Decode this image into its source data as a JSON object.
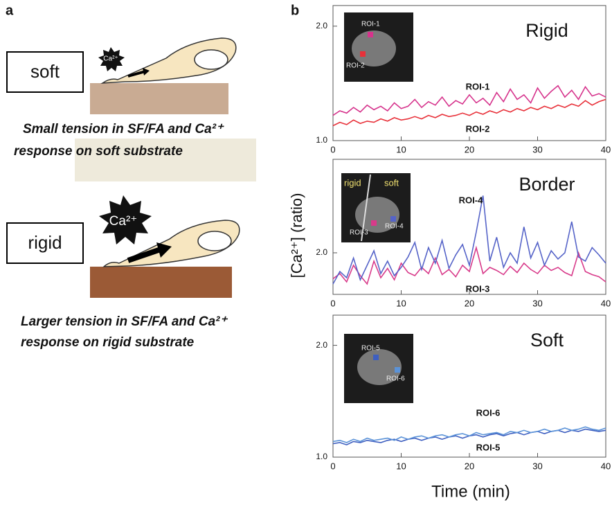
{
  "panel_a": {
    "label": "a",
    "soft": {
      "box": "soft",
      "ion": "Ca²⁺",
      "caption": [
        "Small tension in SF/FA and Ca²⁺",
        "response on soft substrate"
      ]
    },
    "rigid": {
      "box": "rigid",
      "ion": "Ca²⁺",
      "caption": [
        "Larger tension in SF/FA and Ca²⁺",
        "response on rigid substrate"
      ]
    }
  },
  "panel_b_label": "b",
  "chart_data": [
    {
      "type": "line",
      "title": "Rigid",
      "inset_labels": [
        "ROI-1",
        "ROI-2"
      ],
      "x": [
        0,
        1,
        2,
        3,
        4,
        5,
        6,
        7,
        8,
        9,
        10,
        11,
        12,
        13,
        14,
        15,
        16,
        17,
        18,
        19,
        20,
        21,
        22,
        23,
        24,
        25,
        26,
        27,
        28,
        29,
        30,
        31,
        32,
        33,
        34,
        35,
        36,
        37,
        38,
        39,
        40
      ],
      "series": [
        {
          "name": "ROI-1",
          "color": "#d6338c",
          "values": [
            1.22,
            1.26,
            1.24,
            1.29,
            1.25,
            1.31,
            1.27,
            1.3,
            1.26,
            1.33,
            1.28,
            1.3,
            1.36,
            1.29,
            1.34,
            1.31,
            1.38,
            1.3,
            1.35,
            1.32,
            1.4,
            1.33,
            1.37,
            1.31,
            1.42,
            1.34,
            1.45,
            1.36,
            1.4,
            1.33,
            1.46,
            1.37,
            1.43,
            1.48,
            1.38,
            1.44,
            1.36,
            1.47,
            1.39,
            1.41,
            1.38
          ]
        },
        {
          "name": "ROI-2",
          "color": "#e8313a",
          "values": [
            1.13,
            1.16,
            1.14,
            1.18,
            1.15,
            1.17,
            1.16,
            1.19,
            1.17,
            1.2,
            1.18,
            1.19,
            1.21,
            1.19,
            1.22,
            1.2,
            1.23,
            1.21,
            1.22,
            1.24,
            1.22,
            1.25,
            1.23,
            1.26,
            1.24,
            1.27,
            1.25,
            1.28,
            1.26,
            1.29,
            1.27,
            1.3,
            1.28,
            1.31,
            1.29,
            1.32,
            1.3,
            1.35,
            1.31,
            1.34,
            1.36
          ]
        }
      ],
      "xlim": [
        0,
        40
      ],
      "xticks": [
        0,
        10,
        20,
        30,
        40
      ],
      "ylim": [
        1.0,
        2.18
      ],
      "yticks": [
        {
          "value": 1.0,
          "label": "1.0"
        },
        {
          "value": 2.0,
          "label": "2.0"
        }
      ]
    },
    {
      "type": "line",
      "title": "Border",
      "inset_labels": [
        "rigid",
        "soft",
        "ROI-3",
        "ROI-4"
      ],
      "ylabel": "[Ca²⁺] (ratio)",
      "x": [
        0,
        1,
        2,
        3,
        4,
        5,
        6,
        7,
        8,
        9,
        10,
        11,
        12,
        13,
        14,
        15,
        16,
        17,
        18,
        19,
        20,
        21,
        22,
        23,
        24,
        25,
        26,
        27,
        28,
        29,
        30,
        31,
        32,
        33,
        34,
        35,
        36,
        37,
        38,
        39,
        40
      ],
      "series": [
        {
          "name": "ROI-3",
          "color": "#d83a8a",
          "values": [
            1.75,
            1.8,
            1.72,
            1.88,
            1.78,
            1.7,
            1.92,
            1.76,
            1.85,
            1.74,
            1.9,
            1.81,
            1.78,
            1.86,
            1.8,
            1.95,
            1.79,
            1.84,
            1.77,
            1.88,
            1.82,
            2.05,
            1.8,
            1.86,
            1.83,
            1.79,
            1.87,
            1.81,
            1.9,
            1.84,
            1.8,
            1.88,
            1.83,
            1.86,
            1.81,
            1.78,
            2.0,
            1.82,
            1.79,
            1.77,
            1.72
          ]
        },
        {
          "name": "ROI-4",
          "color": "#5563c8",
          "values": [
            1.7,
            1.82,
            1.76,
            1.95,
            1.74,
            1.88,
            2.02,
            1.8,
            1.92,
            1.78,
            1.86,
            1.96,
            2.1,
            1.84,
            2.05,
            1.9,
            2.12,
            1.85,
            1.98,
            2.08,
            1.88,
            2.2,
            2.55,
            1.92,
            2.15,
            1.86,
            2.0,
            1.9,
            2.25,
            1.95,
            2.1,
            1.88,
            2.02,
            1.94,
            2.0,
            2.3,
            1.96,
            1.92,
            2.05,
            1.98,
            1.9
          ]
        }
      ],
      "xlim": [
        0,
        40
      ],
      "xticks": [
        0,
        10,
        20,
        30,
        40
      ],
      "ylim": [
        1.6,
        2.9
      ],
      "yticks": [
        {
          "value": 2.0,
          "label": "2.0"
        }
      ]
    },
    {
      "type": "line",
      "title": "Soft",
      "inset_labels": [
        "ROI-5",
        "ROI-6"
      ],
      "xlabel": "Time (min)",
      "x": [
        0,
        1,
        2,
        3,
        4,
        5,
        6,
        7,
        8,
        9,
        10,
        11,
        12,
        13,
        14,
        15,
        16,
        17,
        18,
        19,
        20,
        21,
        22,
        23,
        24,
        25,
        26,
        27,
        28,
        29,
        30,
        31,
        32,
        33,
        34,
        35,
        36,
        37,
        38,
        39,
        40
      ],
      "series": [
        {
          "name": "ROI-5",
          "color": "#3e5fc0",
          "values": [
            1.12,
            1.13,
            1.11,
            1.14,
            1.13,
            1.15,
            1.14,
            1.13,
            1.15,
            1.16,
            1.14,
            1.16,
            1.17,
            1.15,
            1.17,
            1.18,
            1.16,
            1.18,
            1.19,
            1.17,
            1.19,
            1.2,
            1.18,
            1.2,
            1.21,
            1.19,
            1.21,
            1.22,
            1.2,
            1.22,
            1.23,
            1.21,
            1.23,
            1.24,
            1.22,
            1.24,
            1.23,
            1.25,
            1.24,
            1.23,
            1.24
          ]
        },
        {
          "name": "ROI-6",
          "color": "#5b93d8",
          "values": [
            1.14,
            1.15,
            1.13,
            1.16,
            1.14,
            1.17,
            1.15,
            1.16,
            1.17,
            1.15,
            1.18,
            1.16,
            1.18,
            1.19,
            1.17,
            1.19,
            1.2,
            1.18,
            1.2,
            1.21,
            1.19,
            1.22,
            1.2,
            1.21,
            1.22,
            1.2,
            1.23,
            1.22,
            1.24,
            1.22,
            1.23,
            1.25,
            1.23,
            1.24,
            1.26,
            1.24,
            1.25,
            1.27,
            1.25,
            1.24,
            1.26
          ]
        }
      ],
      "xlim": [
        0,
        40
      ],
      "xticks": [
        0,
        10,
        20,
        30,
        40
      ],
      "ylim": [
        1.0,
        2.27
      ],
      "yticks": [
        {
          "value": 1.0,
          "label": "1.0"
        },
        {
          "value": 2.0,
          "label": "2.0"
        }
      ]
    }
  ]
}
